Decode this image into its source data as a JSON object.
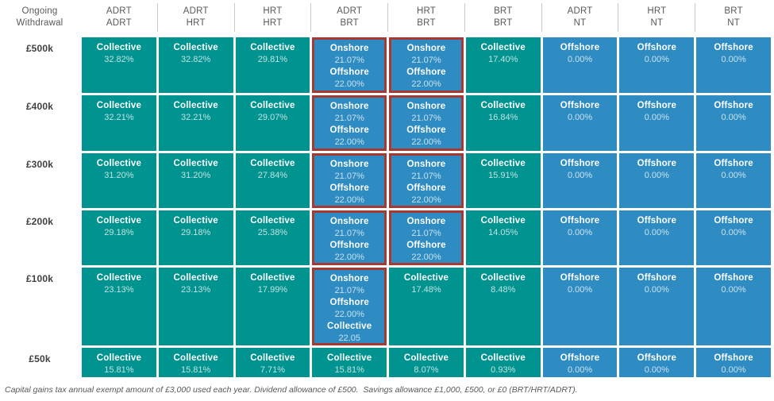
{
  "colors": {
    "teal": "#00938F",
    "blue": "#2E8CC3",
    "highlight_border": "#A63A32",
    "header_text": "#58595B",
    "row_label_text": "#414042"
  },
  "chart_data": {
    "type": "table",
    "corner": {
      "line1": "Ongoing",
      "line2": "Withdrawal"
    },
    "columns": [
      {
        "line1": "ADRT",
        "line2": "ADRT"
      },
      {
        "line1": "ADRT",
        "line2": "HRT"
      },
      {
        "line1": "HRT",
        "line2": "HRT"
      },
      {
        "line1": "ADRT",
        "line2": "BRT"
      },
      {
        "line1": "HRT",
        "line2": "BRT"
      },
      {
        "line1": "BRT",
        "line2": "BRT"
      },
      {
        "line1": "ADRT",
        "line2": "NT"
      },
      {
        "line1": "HRT",
        "line2": "NT"
      },
      {
        "line1": "BRT",
        "line2": "NT"
      }
    ],
    "rows": [
      {
        "label": "£500k",
        "cells": [
          {
            "variant": "teal",
            "highlight": false,
            "lines": [
              {
                "label": "Collective",
                "value": "32.82%"
              }
            ]
          },
          {
            "variant": "teal",
            "highlight": false,
            "lines": [
              {
                "label": "Collective",
                "value": "32.82%"
              }
            ]
          },
          {
            "variant": "teal",
            "highlight": false,
            "lines": [
              {
                "label": "Collective",
                "value": "29.81%"
              }
            ]
          },
          {
            "variant": "blue",
            "highlight": true,
            "lines": [
              {
                "label": "Onshore",
                "value": "21.07%"
              },
              {
                "label": "Offshore",
                "value": "22.00%"
              }
            ]
          },
          {
            "variant": "blue",
            "highlight": true,
            "lines": [
              {
                "label": "Onshore",
                "value": "21.07%"
              },
              {
                "label": "Offshore",
                "value": "22.00%"
              }
            ]
          },
          {
            "variant": "teal",
            "highlight": false,
            "lines": [
              {
                "label": "Collective",
                "value": "17.40%"
              }
            ]
          },
          {
            "variant": "blue",
            "highlight": false,
            "lines": [
              {
                "label": "Offshore",
                "value": "0.00%"
              }
            ]
          },
          {
            "variant": "blue",
            "highlight": false,
            "lines": [
              {
                "label": "Offshore",
                "value": "0.00%"
              }
            ]
          },
          {
            "variant": "blue",
            "highlight": false,
            "lines": [
              {
                "label": "Offshore",
                "value": "0.00%"
              }
            ]
          }
        ]
      },
      {
        "label": "£400k",
        "cells": [
          {
            "variant": "teal",
            "highlight": false,
            "lines": [
              {
                "label": "Collective",
                "value": "32.21%"
              }
            ]
          },
          {
            "variant": "teal",
            "highlight": false,
            "lines": [
              {
                "label": "Collective",
                "value": "32.21%"
              }
            ]
          },
          {
            "variant": "teal",
            "highlight": false,
            "lines": [
              {
                "label": "Collective",
                "value": "29.07%"
              }
            ]
          },
          {
            "variant": "blue",
            "highlight": true,
            "lines": [
              {
                "label": "Onshore",
                "value": "21.07%"
              },
              {
                "label": "Offshore",
                "value": "22.00%"
              }
            ]
          },
          {
            "variant": "blue",
            "highlight": true,
            "lines": [
              {
                "label": "Onshore",
                "value": "21.07%"
              },
              {
                "label": "Offshore",
                "value": "22.00%"
              }
            ]
          },
          {
            "variant": "teal",
            "highlight": false,
            "lines": [
              {
                "label": "Collective",
                "value": "16.84%"
              }
            ]
          },
          {
            "variant": "blue",
            "highlight": false,
            "lines": [
              {
                "label": "Offshore",
                "value": "0.00%"
              }
            ]
          },
          {
            "variant": "blue",
            "highlight": false,
            "lines": [
              {
                "label": "Offshore",
                "value": "0.00%"
              }
            ]
          },
          {
            "variant": "blue",
            "highlight": false,
            "lines": [
              {
                "label": "Offshore",
                "value": "0.00%"
              }
            ]
          }
        ]
      },
      {
        "label": "£300k",
        "cells": [
          {
            "variant": "teal",
            "highlight": false,
            "lines": [
              {
                "label": "Collective",
                "value": "31.20%"
              }
            ]
          },
          {
            "variant": "teal",
            "highlight": false,
            "lines": [
              {
                "label": "Collective",
                "value": "31.20%"
              }
            ]
          },
          {
            "variant": "teal",
            "highlight": false,
            "lines": [
              {
                "label": "Collective",
                "value": "27.84%"
              }
            ]
          },
          {
            "variant": "blue",
            "highlight": true,
            "lines": [
              {
                "label": "Onshore",
                "value": "21.07%"
              },
              {
                "label": "Offshore",
                "value": "22.00%"
              }
            ]
          },
          {
            "variant": "blue",
            "highlight": true,
            "lines": [
              {
                "label": "Onshore",
                "value": "21.07%"
              },
              {
                "label": "Offshore",
                "value": "22.00%"
              }
            ]
          },
          {
            "variant": "teal",
            "highlight": false,
            "lines": [
              {
                "label": "Collective",
                "value": "15.91%"
              }
            ]
          },
          {
            "variant": "blue",
            "highlight": false,
            "lines": [
              {
                "label": "Offshore",
                "value": "0.00%"
              }
            ]
          },
          {
            "variant": "blue",
            "highlight": false,
            "lines": [
              {
                "label": "Offshore",
                "value": "0.00%"
              }
            ]
          },
          {
            "variant": "blue",
            "highlight": false,
            "lines": [
              {
                "label": "Offshore",
                "value": "0.00%"
              }
            ]
          }
        ]
      },
      {
        "label": "£200k",
        "cells": [
          {
            "variant": "teal",
            "highlight": false,
            "lines": [
              {
                "label": "Collective",
                "value": "29.18%"
              }
            ]
          },
          {
            "variant": "teal",
            "highlight": false,
            "lines": [
              {
                "label": "Collective",
                "value": "29.18%"
              }
            ]
          },
          {
            "variant": "teal",
            "highlight": false,
            "lines": [
              {
                "label": "Collective",
                "value": "25.38%"
              }
            ]
          },
          {
            "variant": "blue",
            "highlight": true,
            "lines": [
              {
                "label": "Onshore",
                "value": "21.07%"
              },
              {
                "label": "Offshore",
                "value": "22.00%"
              }
            ]
          },
          {
            "variant": "blue",
            "highlight": true,
            "lines": [
              {
                "label": "Onshore",
                "value": "21.07%"
              },
              {
                "label": "Offshore",
                "value": "22.00%"
              }
            ]
          },
          {
            "variant": "teal",
            "highlight": false,
            "lines": [
              {
                "label": "Collective",
                "value": "14.05%"
              }
            ]
          },
          {
            "variant": "blue",
            "highlight": false,
            "lines": [
              {
                "label": "Offshore",
                "value": "0.00%"
              }
            ]
          },
          {
            "variant": "blue",
            "highlight": false,
            "lines": [
              {
                "label": "Offshore",
                "value": "0.00%"
              }
            ]
          },
          {
            "variant": "blue",
            "highlight": false,
            "lines": [
              {
                "label": "Offshore",
                "value": "0.00%"
              }
            ]
          }
        ]
      },
      {
        "label": "£100k",
        "cells": [
          {
            "variant": "teal",
            "highlight": false,
            "lines": [
              {
                "label": "Collective",
                "value": "23.13%"
              }
            ]
          },
          {
            "variant": "teal",
            "highlight": false,
            "lines": [
              {
                "label": "Collective",
                "value": "23.13%"
              }
            ]
          },
          {
            "variant": "teal",
            "highlight": false,
            "lines": [
              {
                "label": "Collective",
                "value": "17.99%"
              }
            ]
          },
          {
            "variant": "blue",
            "highlight": true,
            "lines": [
              {
                "label": "Onshore",
                "value": "21.07%"
              },
              {
                "label": "Offshore",
                "value": "22.00%"
              },
              {
                "label": "Collective",
                "value": "22.05"
              }
            ]
          },
          {
            "variant": "teal",
            "highlight": false,
            "lines": [
              {
                "label": "Collective",
                "value": "17.48%"
              }
            ]
          },
          {
            "variant": "teal",
            "highlight": false,
            "lines": [
              {
                "label": "Collective",
                "value": "8.48%"
              }
            ]
          },
          {
            "variant": "blue",
            "highlight": false,
            "lines": [
              {
                "label": "Offshore",
                "value": "0.00%"
              }
            ]
          },
          {
            "variant": "blue",
            "highlight": false,
            "lines": [
              {
                "label": "Offshore",
                "value": "0.00%"
              }
            ]
          },
          {
            "variant": "blue",
            "highlight": false,
            "lines": [
              {
                "label": "Offshore",
                "value": "0.00%"
              }
            ]
          }
        ]
      },
      {
        "label": "£50k",
        "cells": [
          {
            "variant": "teal",
            "highlight": false,
            "lines": [
              {
                "label": "Collective",
                "value": "15.81%"
              }
            ]
          },
          {
            "variant": "teal",
            "highlight": false,
            "lines": [
              {
                "label": "Collective",
                "value": "15.81%"
              }
            ]
          },
          {
            "variant": "teal",
            "highlight": false,
            "lines": [
              {
                "label": "Collective",
                "value": "7.71%"
              }
            ]
          },
          {
            "variant": "teal",
            "highlight": false,
            "lines": [
              {
                "label": "Collective",
                "value": "15.81%"
              }
            ]
          },
          {
            "variant": "teal",
            "highlight": false,
            "lines": [
              {
                "label": "Collective",
                "value": "8.07%"
              }
            ]
          },
          {
            "variant": "teal",
            "highlight": false,
            "lines": [
              {
                "label": "Collective",
                "value": "0.93%"
              }
            ]
          },
          {
            "variant": "blue",
            "highlight": false,
            "lines": [
              {
                "label": "Offshore",
                "value": "0.00%"
              }
            ]
          },
          {
            "variant": "blue",
            "highlight": false,
            "lines": [
              {
                "label": "Offshore",
                "value": "0.00%"
              }
            ]
          },
          {
            "variant": "blue",
            "highlight": false,
            "lines": [
              {
                "label": "Offshore",
                "value": "0.00%"
              }
            ]
          }
        ]
      }
    ],
    "footnote": "Capital gains tax annual exempt amount of £3,000 used each year. Dividend allowance of £500.  Savings allowance £1,000, £500, or £0 (BRT/HRT/ADRT)."
  }
}
